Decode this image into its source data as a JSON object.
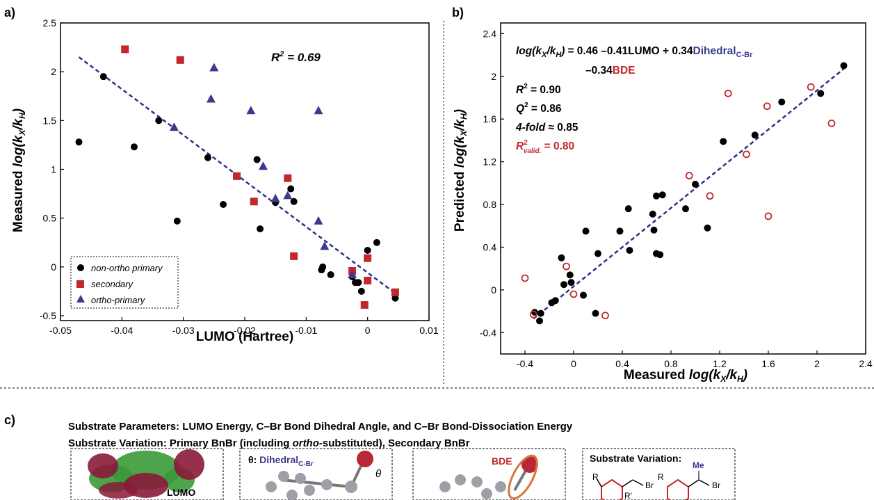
{
  "panel_labels": {
    "a": "a)",
    "b": "b)",
    "c": "c)"
  },
  "colors": {
    "black": "#000000",
    "red": "#c0282c",
    "blue": "#3a3a8e",
    "green": "#3a9a3a",
    "maroon": "#8a1a3a",
    "grey": "#9ea0a8",
    "orange": "#d9743a"
  },
  "chart_data": [
    {
      "id": "a",
      "type": "scatter",
      "xlabel": "LUMO (Hartree)",
      "ylabel_parts": [
        "Measured ",
        "log",
        "(k",
        "X",
        "/k",
        "H",
        ")"
      ],
      "xlim": [
        -0.05,
        0.01
      ],
      "ylim": [
        -0.55,
        2.5
      ],
      "xticks": [
        -0.05,
        -0.04,
        -0.03,
        -0.02,
        -0.01,
        0,
        0.01
      ],
      "xtick_labels": [
        "-0.05",
        "-0.04",
        "-0.03",
        "-0.02",
        "-0.01",
        "0",
        "0.01"
      ],
      "yticks": [
        -0.5,
        0,
        0.5,
        1,
        1.5,
        2,
        2.5
      ],
      "ytick_labels": [
        "-0.5",
        "0",
        "0.5",
        "1",
        "1.5",
        "2",
        "2.5"
      ],
      "annotation": {
        "r": "R",
        "sup": "2",
        "rest": " = 0.69"
      },
      "legend": [
        "non-ortho primary",
        "secondary",
        "ortho-primary"
      ],
      "legend_position": "bottom-left",
      "fit": {
        "x": [
          -0.047,
          0.0045
        ],
        "y": [
          2.15,
          -0.27
        ]
      },
      "series": [
        {
          "name": "non-ortho primary",
          "marker": "circle",
          "color": "#000000",
          "x": [
            -0.047,
            -0.043,
            -0.038,
            -0.034,
            -0.031,
            -0.026,
            -0.0235,
            -0.018,
            -0.0175,
            -0.015,
            -0.0125,
            -0.012,
            -0.0075,
            -0.0073,
            -0.006,
            -0.0025,
            -0.002,
            -0.0015,
            -0.001,
            0.0,
            0.0015,
            0.0045
          ],
          "y": [
            1.28,
            1.95,
            1.23,
            1.5,
            0.47,
            1.12,
            0.64,
            1.1,
            0.39,
            0.66,
            0.8,
            0.67,
            -0.03,
            0.0,
            -0.08,
            -0.1,
            -0.16,
            -0.16,
            -0.25,
            0.17,
            0.25,
            -0.32
          ]
        },
        {
          "name": "secondary",
          "marker": "square",
          "color": "#c0282c",
          "x": [
            -0.0395,
            -0.0305,
            -0.0213,
            -0.0185,
            -0.013,
            -0.012,
            -0.0025,
            -0.0005,
            0.0,
            0.0,
            0.0045
          ],
          "y": [
            2.23,
            2.12,
            0.93,
            0.67,
            0.91,
            0.11,
            -0.04,
            -0.39,
            0.09,
            -0.14,
            -0.26
          ]
        },
        {
          "name": "ortho-primary",
          "marker": "triangle",
          "color": "#3a3a8e",
          "x": [
            -0.0315,
            -0.025,
            -0.0255,
            -0.019,
            -0.008,
            -0.017,
            -0.015,
            -0.013,
            -0.008,
            -0.007,
            -0.0025
          ],
          "y": [
            1.43,
            2.04,
            1.72,
            1.6,
            1.6,
            1.03,
            0.7,
            0.73,
            0.47,
            0.21,
            -0.08
          ]
        }
      ]
    },
    {
      "id": "b",
      "type": "scatter",
      "xlabel_parts": [
        "Measured ",
        "log",
        "(k",
        "X",
        "/k",
        "H",
        ")"
      ],
      "ylabel_parts": [
        "Predicted ",
        "log",
        "(k",
        "X",
        "/k",
        "H",
        ")"
      ],
      "xlim": [
        -0.6,
        2.4
      ],
      "ylim": [
        -0.6,
        2.5
      ],
      "xticks": [
        -0.4,
        0,
        0.4,
        0.8,
        1.2,
        1.6,
        2,
        2.4
      ],
      "xtick_labels": [
        "-0.4",
        "0",
        "0.4",
        "0.8",
        "1.2",
        "1.6",
        "2",
        "2.4"
      ],
      "yticks": [
        -0.4,
        0,
        0.4,
        0.8,
        1.2,
        1.6,
        2,
        2.4
      ],
      "ytick_labels": [
        "-0.4",
        "0",
        "0.4",
        "0.8",
        "1.2",
        "1.6",
        "2",
        "2.4"
      ],
      "equation": {
        "lhs_parts": [
          "log",
          "(k",
          "X",
          "/k",
          "H",
          ")"
        ],
        "rhs1": "= 0.46 –0.41LUMO + 0.34",
        "dihedral": "Dihedral",
        "dihedral_sub": "C-Br",
        "rhs2": "–0.34",
        "bde": "BDE"
      },
      "stats": [
        {
          "lhs": "R",
          "sup": "2",
          "rhs": " = 0.90"
        },
        {
          "lhs": "Q",
          "sup": "2",
          "rhs": " = 0.86"
        },
        {
          "lhs": "4-fold",
          "rhs": " ≈ 0.85"
        },
        {
          "lhs": "R",
          "sup": "2",
          "sub": "valid.",
          "rhs": " = 0.80"
        }
      ],
      "fit": {
        "x": [
          -0.33,
          2.22
        ],
        "y": [
          -0.27,
          2.07
        ]
      },
      "series": [
        {
          "name": "training",
          "marker": "filled-circle",
          "color": "#000000",
          "x": [
            -0.32,
            -0.28,
            -0.27,
            -0.18,
            -0.15,
            -0.1,
            -0.08,
            -0.03,
            -0.02,
            0.08,
            0.1,
            0.18,
            0.2,
            0.38,
            0.45,
            0.46,
            0.65,
            0.66,
            0.68,
            0.68,
            0.71,
            0.73,
            0.92,
            1.0,
            1.1,
            1.23,
            1.49,
            1.71,
            2.03,
            2.22
          ],
          "y": [
            -0.21,
            -0.29,
            -0.22,
            -0.12,
            -0.1,
            0.3,
            0.05,
            0.14,
            0.07,
            -0.05,
            0.55,
            -0.22,
            0.34,
            0.55,
            0.76,
            0.37,
            0.71,
            0.56,
            0.88,
            0.34,
            0.33,
            0.89,
            0.76,
            0.99,
            0.58,
            1.39,
            1.45,
            1.76,
            1.84,
            2.1
          ]
        },
        {
          "name": "validation",
          "marker": "open-circle",
          "color": "#c0282c",
          "x": [
            -0.4,
            -0.33,
            -0.06,
            0.0,
            0.26,
            0.95,
            1.12,
            1.27,
            1.42,
            1.59,
            1.6,
            1.95,
            2.12
          ],
          "y": [
            0.11,
            -0.23,
            0.22,
            -0.04,
            -0.24,
            1.07,
            0.88,
            1.84,
            1.27,
            1.72,
            0.69,
            1.9,
            1.56
          ]
        }
      ]
    }
  ],
  "panel_c": {
    "line1": "Substrate Parameters: LUMO Energy, C–Br Bond Dihedral Angle, and C–Br Bond-Dissociation Energy",
    "line2_pre": "Substrate Variation: Primary BnBr (including ",
    "line2_em": "ortho",
    "line2_post": "-substituted), Secondary BnBr",
    "box1_label": "LUMO",
    "box2_theta": "θ: ",
    "box2_label": "Dihedral",
    "box2_sub": "C-Br",
    "box2_angle": "θ",
    "box3_label": "BDE",
    "box4_title": "Substrate Variation:",
    "box4_R": "R",
    "box4_Br1": "Br",
    "box4_R2": "R'",
    "box4_R3": "R",
    "box4_Me": "Me",
    "box4_Br2": "Br"
  }
}
